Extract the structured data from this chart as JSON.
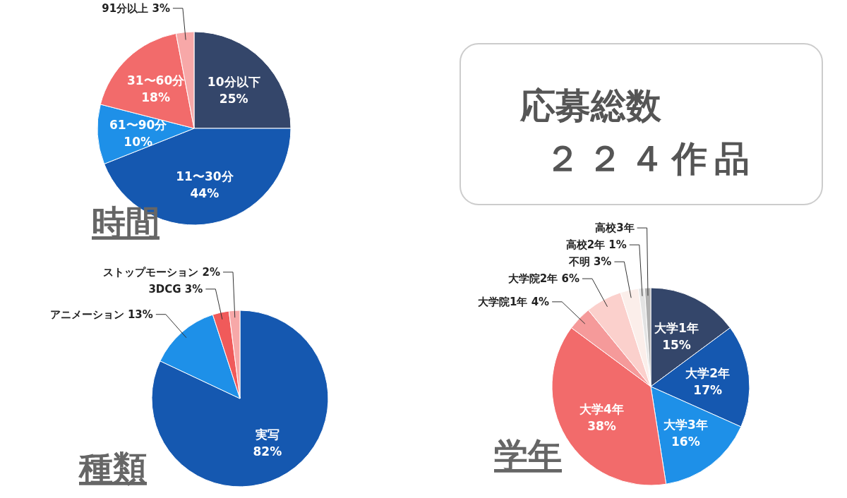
{
  "chart_data": [
    {
      "type": "pie",
      "title": "時間",
      "categories": [
        "10分以下",
        "11〜30分",
        "61〜90分",
        "31〜60分",
        "91分以上"
      ],
      "values": [
        25,
        44,
        10,
        18,
        3
      ],
      "value_labels": [
        "25%",
        "44%",
        "10%",
        "18%",
        "3%"
      ],
      "colors": [
        "#34466a",
        "#1558b0",
        "#1e90e8",
        "#f26b6b",
        "#f7a8a8"
      ]
    },
    {
      "type": "other",
      "title": "応募総数",
      "annotations": [
        "２２４作品"
      ]
    },
    {
      "type": "pie",
      "title": "種類",
      "categories": [
        "実写",
        "アニメーション",
        "3DCG",
        "ストップモーション"
      ],
      "values": [
        82,
        13,
        3,
        2
      ],
      "value_labels": [
        "82%",
        "13%",
        "3%",
        "2%"
      ],
      "colors": [
        "#1558b0",
        "#1e90e8",
        "#f05a5a",
        "#f7a8a8"
      ]
    },
    {
      "type": "pie",
      "title": "学年",
      "categories": [
        "大学1年",
        "大学2年",
        "大学3年",
        "大学4年",
        "大学院1年",
        "大学院2年",
        "不明",
        "高校2年",
        "高校3年"
      ],
      "values": [
        15,
        17,
        16,
        38,
        4,
        6,
        3,
        1,
        1
      ],
      "value_labels": [
        "15%",
        "17%",
        "16%",
        "38%",
        "4%",
        "6%",
        "3%",
        "1%",
        null
      ],
      "colors": [
        "#34466a",
        "#1558b0",
        "#1e90e8",
        "#f26b6b",
        "#f59a9a",
        "#fbd0cc",
        "#fbeeea",
        "#e3e3e3",
        "#b0b0b0"
      ]
    }
  ]
}
